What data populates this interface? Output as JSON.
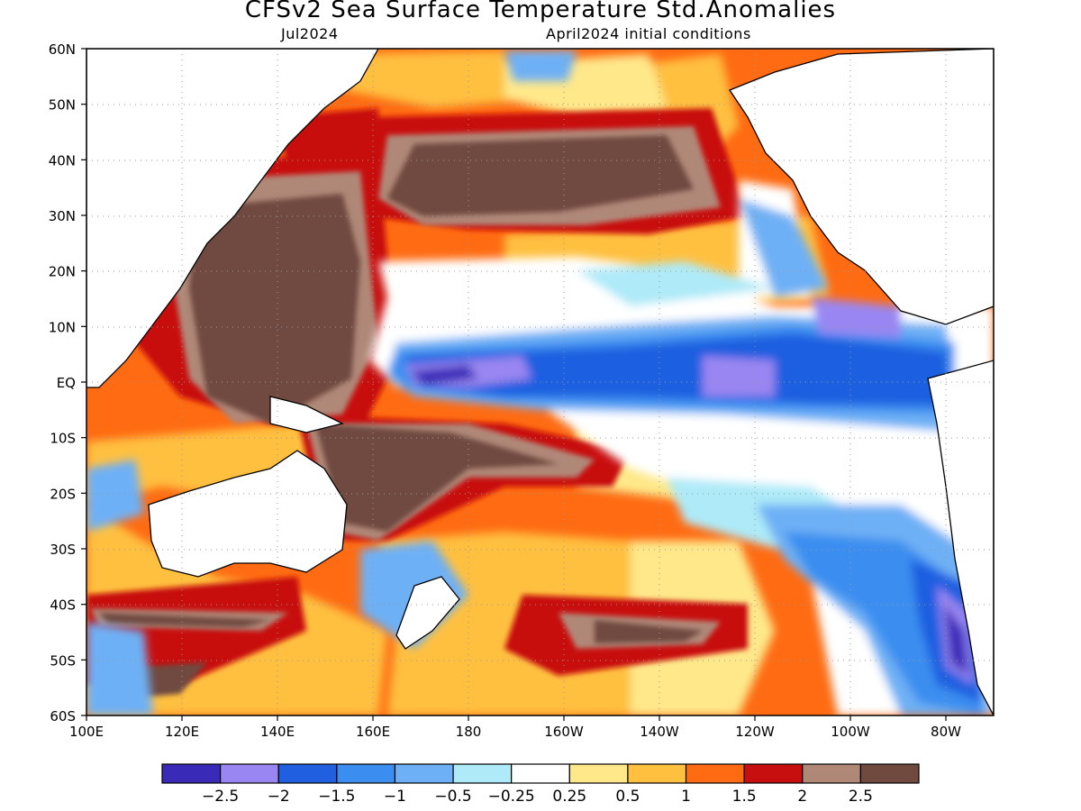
{
  "title": "CFSv2 Sea Surface Temperature Std.Anomalies",
  "valid_month": "Jul2024",
  "initial_conditions": "April2024 initial conditions",
  "map": {
    "lon_range": [
      100,
      290
    ],
    "lat_range": [
      -60,
      60
    ],
    "lat_ticks": [
      "60N",
      "50N",
      "40N",
      "30N",
      "20N",
      "10N",
      "EQ",
      "10S",
      "20S",
      "30S",
      "40S",
      "50S",
      "60S"
    ],
    "lon_ticks": [
      "100E",
      "120E",
      "140E",
      "160E",
      "180",
      "160W",
      "140W",
      "120W",
      "100W",
      "80W"
    ],
    "grid": "dotted"
  },
  "colorbar": {
    "colors": [
      "#3a2ab8",
      "#9a86f2",
      "#1f5fe0",
      "#3b8ef0",
      "#6eb0f5",
      "#aeeaf8",
      "#ffffff",
      "#ffe88a",
      "#ffc040",
      "#ff6b12",
      "#c80f0f",
      "#b08878",
      "#704a3f"
    ],
    "labels": [
      "−2.5",
      "−2",
      "−1.5",
      "−1",
      "−0.5",
      "−0.25",
      "0.25",
      "0.5",
      "1",
      "1.5",
      "2",
      "2.5"
    ]
  },
  "features": [
    {
      "name": "cold-tongue-equatorial",
      "level": -1.5
    },
    {
      "name": "cold-core-equatorial",
      "level": -2.5
    },
    {
      "name": "warm-pool-west-pacific",
      "level": 2.5
    },
    {
      "name": "north-pacific-warm-blob",
      "level": 2.5
    },
    {
      "name": "southeast-pacific-cold",
      "level": -1.0
    },
    {
      "name": "chile-coast-cold",
      "level": -2.5
    }
  ]
}
